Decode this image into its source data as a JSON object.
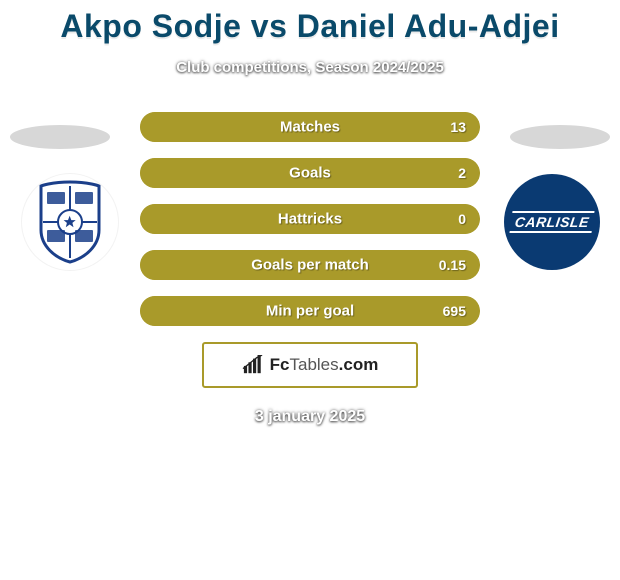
{
  "title": "Akpo Sodje vs Daniel Adu-Adjei",
  "subtitle": "Club competitions, Season 2024/2025",
  "date": "3 january 2025",
  "colors": {
    "title_color": "#0a4a6a",
    "left_player": "#a99a2a",
    "right_player": "#a99a2a",
    "bar_border": "#a99a2a",
    "brand_border": "#a99a2a",
    "ellipse": "#d7d7d7",
    "badge_right_bg": "#0a3a72",
    "crest_blue": "#1b3f8a",
    "crest_white": "#ffffff"
  },
  "stats": [
    {
      "label": "Matches",
      "left_value": "",
      "right_value": "13",
      "left_pct": 0,
      "right_pct": 100
    },
    {
      "label": "Goals",
      "left_value": "",
      "right_value": "2",
      "left_pct": 0,
      "right_pct": 100
    },
    {
      "label": "Hattricks",
      "left_value": "",
      "right_value": "0",
      "left_pct": 0,
      "right_pct": 100
    },
    {
      "label": "Goals per match",
      "left_value": "",
      "right_value": "0.15",
      "left_pct": 0,
      "right_pct": 100
    },
    {
      "label": "Min per goal",
      "left_value": "",
      "right_value": "695",
      "left_pct": 0,
      "right_pct": 100
    }
  ],
  "badges": {
    "right_text": "CARLISLE"
  },
  "branding": {
    "prefix": "Fc",
    "suffix": "Tables",
    "tld": ".com"
  }
}
